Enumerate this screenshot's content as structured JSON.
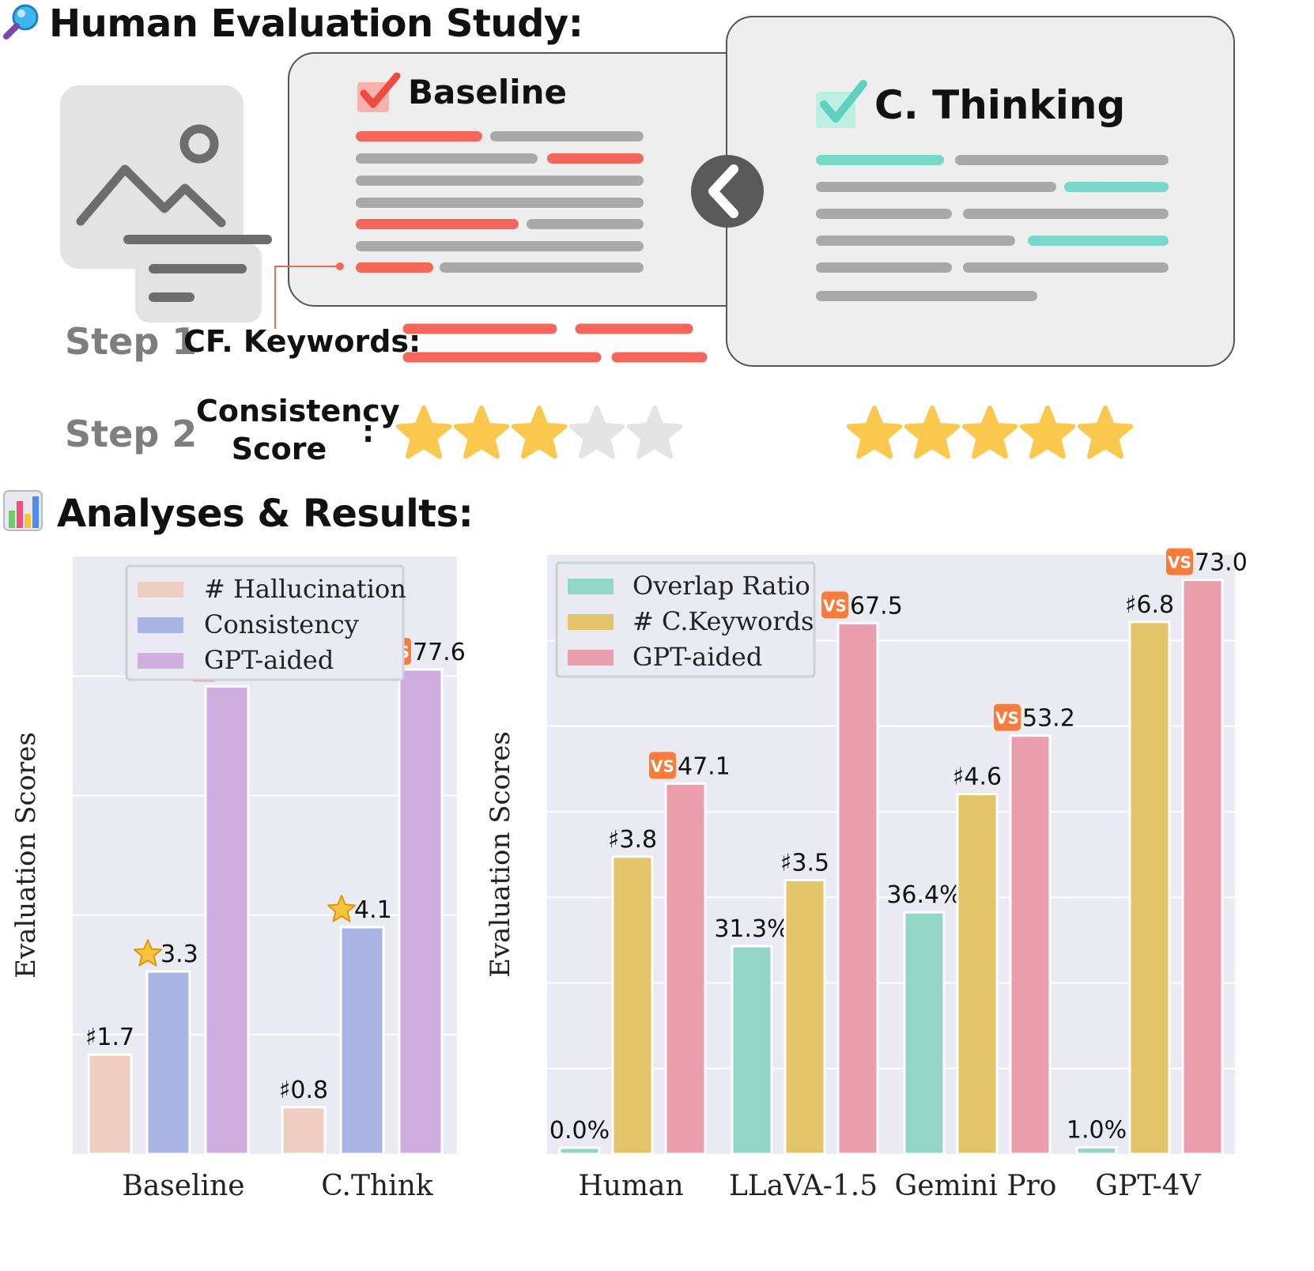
{
  "study": {
    "title": "Human Evaluation Study:",
    "baseline_title": "Baseline",
    "cthinking_title": "C. Thinking",
    "step1": "Step 1",
    "cf_keywords": "CF. Keywords:",
    "step2": "Step 2",
    "consistency_line1": "Consistency",
    "consistency_line2": "Score",
    "colon": ":",
    "baseline_stars": 3,
    "cthinking_stars": 5,
    "stars_total": 5
  },
  "results_title": "Analyses & Results:",
  "colors": {
    "hallucination": "#efcdc0",
    "consistency": "#a7b4e4",
    "gpt_aided_left": "#cfaedf",
    "overlap": "#94d6c6",
    "keywords": "#e3c46a",
    "gpt_aided_right": "#eb9eae",
    "plot_bg": "#eaeaf2",
    "red_line": "#f4655a",
    "teal_line": "#79d8c8",
    "star": "#fbc84e",
    "star_empty": "#e4e4e4",
    "vs_badge": "#f97c3b"
  },
  "chart_data": [
    {
      "type": "bar",
      "ylabel": "Evaluation Scores",
      "categories": [
        "Baseline",
        "C.Think"
      ],
      "legend_position": "top-center",
      "grid": true,
      "series": [
        {
          "name": "# Hallucination",
          "values": [
            1.7,
            0.8
          ],
          "labels": [
            "♯1.7",
            "♯0.8"
          ],
          "marker": "none"
        },
        {
          "name": "Consistency",
          "values": [
            3.3,
            4.1
          ],
          "labels": [
            "3.3",
            "4.1"
          ],
          "marker": "star"
        },
        {
          "name": "GPT-aided",
          "values": [
            74.9,
            77.6
          ],
          "labels": [
            "74.9",
            "77.6"
          ],
          "marker": "vs"
        }
      ]
    },
    {
      "type": "bar",
      "ylabel": "Evaluation Scores",
      "categories": [
        "Human",
        "LLaVA-1.5",
        "Gemini Pro",
        "GPT-4V"
      ],
      "legend_position": "top-left",
      "grid": true,
      "series": [
        {
          "name": "Overlap Ratio",
          "values": [
            0.0,
            31.3,
            36.4,
            1.0
          ],
          "labels": [
            "0.0%",
            "31.3%",
            "36.4%",
            "1.0%"
          ],
          "marker": "none"
        },
        {
          "name": "# C.Keywords",
          "values": [
            3.8,
            3.5,
            4.6,
            6.8
          ],
          "labels": [
            "♯3.8",
            "♯3.5",
            "♯4.6",
            "♯6.8"
          ],
          "marker": "none"
        },
        {
          "name": "GPT-aided",
          "values": [
            47.1,
            67.5,
            53.2,
            73.0
          ],
          "labels": [
            "47.1",
            "67.5",
            "53.2",
            "73.0"
          ],
          "marker": "vs"
        }
      ]
    }
  ]
}
